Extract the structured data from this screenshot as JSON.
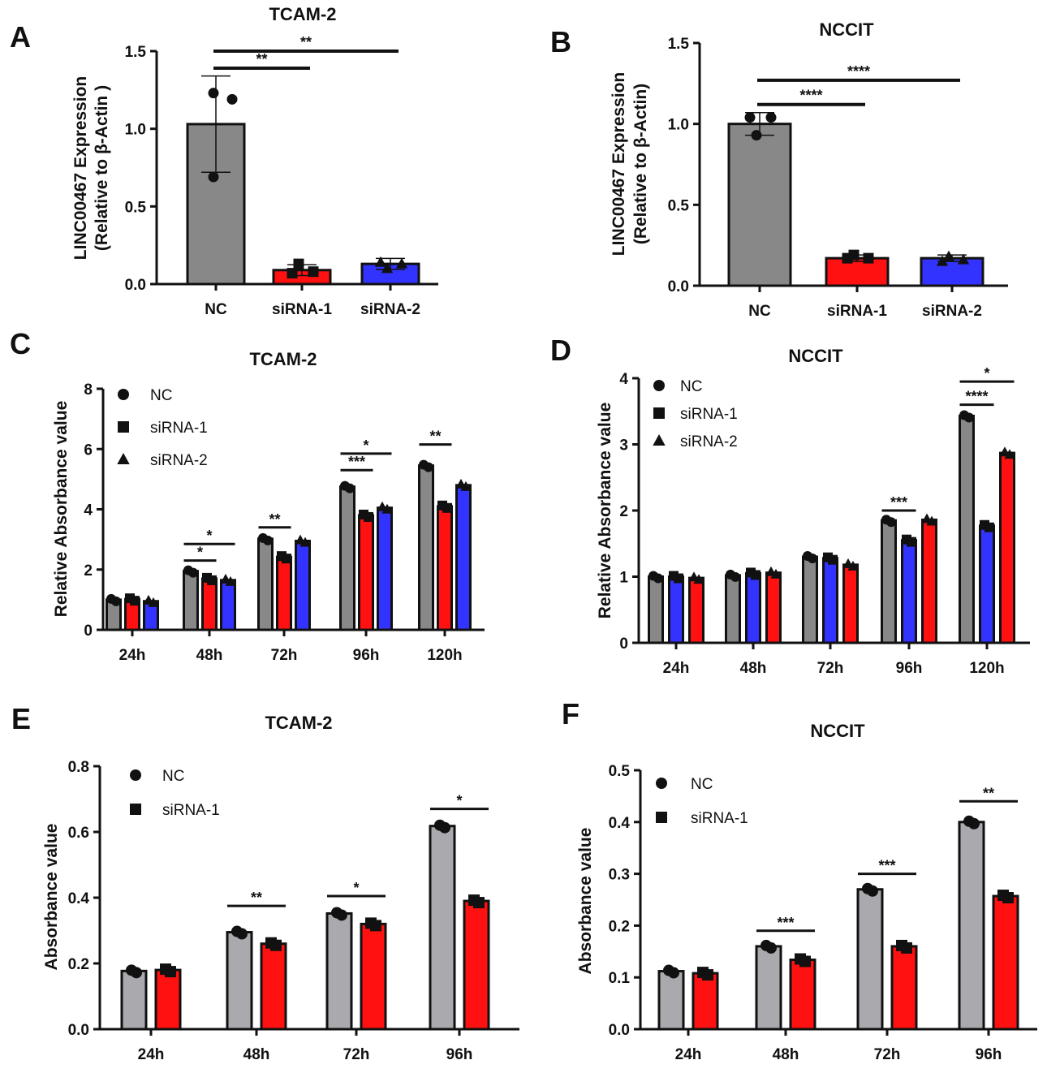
{
  "colors": {
    "gray": "#888888",
    "gray_light": "#a9a9ae",
    "red": "#ff1111",
    "blue": "#3333ff",
    "ink": "#111111"
  },
  "chart_data": [
    {
      "panel": "A",
      "type": "bar",
      "title": "TCAM-2",
      "ylabel": [
        "LINC00467 Expression",
        "(Relative to β-Actin )"
      ],
      "ylim": [
        0,
        1.5
      ],
      "yticks": [
        "0.0",
        "0.5",
        "1.0",
        "1.5"
      ],
      "categories": [
        "NC",
        "siRNA-1",
        "siRNA-2"
      ],
      "values": [
        1.03,
        0.09,
        0.13
      ],
      "errors": [
        0.31,
        0.035,
        0.035
      ],
      "bar_colors": [
        "gray",
        "red",
        "blue"
      ],
      "points": [
        [
          1.23,
          1.19,
          0.69
        ],
        [
          0.07,
          0.13,
          0.08
        ],
        [
          0.14,
          0.1,
          0.13
        ]
      ],
      "markers": [
        "circle",
        "square",
        "triangle"
      ],
      "significance": [
        {
          "from": "NC",
          "to": "siRNA-1",
          "level": 1.39,
          "label": "**"
        },
        {
          "from": "NC",
          "to": "siRNA-2",
          "level": 1.5,
          "label": "**"
        }
      ]
    },
    {
      "panel": "B",
      "type": "bar",
      "title": "NCCIT",
      "ylabel": [
        "LINC00467 Expression",
        "(Relative to β-Actin)"
      ],
      "ylim": [
        0,
        1.5
      ],
      "yticks": [
        "0.0",
        "0.5",
        "1.0",
        "1.5"
      ],
      "categories": [
        "NC",
        "siRNA-1",
        "siRNA-2"
      ],
      "values": [
        1.0,
        0.17,
        0.17
      ],
      "errors": [
        0.07,
        0.02,
        0.02
      ],
      "bar_colors": [
        "gray",
        "red",
        "blue"
      ],
      "points": [
        [
          1.04,
          0.93,
          1.04
        ],
        [
          0.17,
          0.19,
          0.17
        ],
        [
          0.15,
          0.18,
          0.16
        ]
      ],
      "markers": [
        "circle",
        "square",
        "triangle"
      ],
      "significance": [
        {
          "from": "NC",
          "to": "siRNA-1",
          "level": 1.12,
          "label": "****"
        },
        {
          "from": "NC",
          "to": "siRNA-2",
          "level": 1.27,
          "label": "****"
        }
      ]
    },
    {
      "panel": "C",
      "type": "bar",
      "title": "TCAM-2",
      "ylabel": [
        "Relative Absorbance value"
      ],
      "ylim": [
        0,
        8
      ],
      "yticks": [
        "0",
        "2",
        "4",
        "6",
        "8"
      ],
      "categories": [
        "24h",
        "48h",
        "72h",
        "96h",
        "120h"
      ],
      "series": [
        {
          "name": "NC",
          "color": "gray",
          "marker": "circle",
          "values": [
            1.0,
            1.95,
            3.02,
            4.75,
            5.45
          ]
        },
        {
          "name": "siRNA-1",
          "color": "red",
          "marker": "square",
          "values": [
            1.02,
            1.7,
            2.42,
            3.8,
            4.1
          ]
        },
        {
          "name": "siRNA-2",
          "color": "blue",
          "marker": "triangle",
          "values": [
            0.95,
            1.65,
            2.95,
            4.05,
            4.8
          ]
        }
      ],
      "legend": "top-left",
      "significance": [
        {
          "cat": 1,
          "from": 0,
          "to": 1,
          "level": 2.3,
          "label": "*"
        },
        {
          "cat": 1,
          "from": 0,
          "to": 2,
          "level": 2.85,
          "label": "*"
        },
        {
          "cat": 2,
          "from": 0,
          "to": 1,
          "level": 3.4,
          "label": "**"
        },
        {
          "cat": 3,
          "from": 0,
          "to": 1,
          "level": 5.3,
          "label": "***"
        },
        {
          "cat": 3,
          "from": 0,
          "to": 2,
          "level": 5.85,
          "label": "*"
        },
        {
          "cat": 4,
          "from": 0,
          "to": 1,
          "level": 6.15,
          "label": "**"
        }
      ]
    },
    {
      "panel": "D",
      "type": "bar",
      "title": "NCCIT",
      "ylabel": [
        "Relative Absorbance value"
      ],
      "ylim": [
        0,
        4
      ],
      "yticks": [
        "0",
        "1",
        "2",
        "3",
        "4"
      ],
      "categories": [
        "24h",
        "48h",
        "72h",
        "96h",
        "120h"
      ],
      "series": [
        {
          "name": "NC",
          "color": "gray",
          "marker": "circle",
          "values": [
            1.0,
            1.02,
            1.3,
            1.85,
            3.43
          ]
        },
        {
          "name": "siRNA-1",
          "color": "blue",
          "marker": "square",
          "values": [
            1.0,
            1.05,
            1.28,
            1.55,
            1.77
          ]
        },
        {
          "name": "siRNA-2",
          "color": "red",
          "marker": "triangle",
          "values": [
            0.98,
            1.06,
            1.18,
            1.86,
            2.87
          ]
        }
      ],
      "legend": "top-left",
      "significance": [
        {
          "cat": 3,
          "from": 0,
          "to": 1,
          "level": 2.0,
          "label": "***"
        },
        {
          "cat": 4,
          "from": 0,
          "to": 1,
          "level": 3.6,
          "label": "****"
        },
        {
          "cat": 4,
          "from": 0,
          "to": 2,
          "level": 3.95,
          "label": "*"
        }
      ]
    },
    {
      "panel": "E",
      "type": "bar",
      "title": "TCAM-2",
      "ylabel": [
        "Absorbance value"
      ],
      "ylim": [
        0,
        0.8
      ],
      "yticks": [
        "0.0",
        "0.2",
        "0.4",
        "0.6",
        "0.8"
      ],
      "categories": [
        "24h",
        "48h",
        "72h",
        "96h"
      ],
      "series": [
        {
          "name": "NC",
          "color": "gray_light",
          "marker": "circle",
          "values": [
            0.177,
            0.295,
            0.352,
            0.618
          ]
        },
        {
          "name": "siRNA-1",
          "color": "red",
          "marker": "square",
          "values": [
            0.18,
            0.26,
            0.32,
            0.39
          ]
        }
      ],
      "legend": "top-left",
      "significance": [
        {
          "cat": 1,
          "from": 0,
          "to": 1,
          "level": 0.375,
          "label": "**"
        },
        {
          "cat": 2,
          "from": 0,
          "to": 1,
          "level": 0.405,
          "label": "*"
        },
        {
          "cat": 3,
          "from": 0,
          "to": 1,
          "level": 0.67,
          "label": "*"
        }
      ]
    },
    {
      "panel": "F",
      "type": "bar",
      "title": "NCCIT",
      "ylabel": [
        "Absorbance value"
      ],
      "ylim": [
        0,
        0.5
      ],
      "yticks": [
        "0.0",
        "0.1",
        "0.2",
        "0.3",
        "0.4",
        "0.5"
      ],
      "categories": [
        "24h",
        "48h",
        "72h",
        "96h"
      ],
      "series": [
        {
          "name": "NC",
          "color": "gray_light",
          "marker": "circle",
          "values": [
            0.112,
            0.16,
            0.27,
            0.4
          ]
        },
        {
          "name": "siRNA-1",
          "color": "red",
          "marker": "square",
          "values": [
            0.108,
            0.134,
            0.16,
            0.257
          ]
        }
      ],
      "legend": "top-left",
      "significance": [
        {
          "cat": 1,
          "from": 0,
          "to": 1,
          "level": 0.19,
          "label": "***"
        },
        {
          "cat": 2,
          "from": 0,
          "to": 1,
          "level": 0.3,
          "label": "***"
        },
        {
          "cat": 3,
          "from": 0,
          "to": 1,
          "level": 0.44,
          "label": "**"
        }
      ]
    }
  ]
}
